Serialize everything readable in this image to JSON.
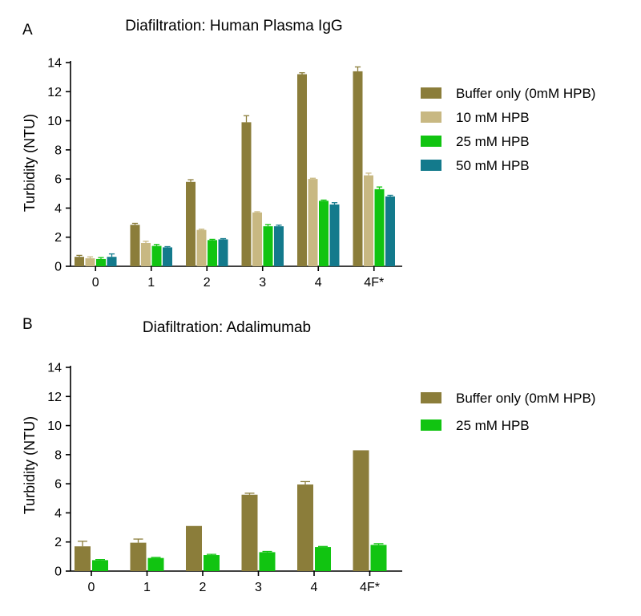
{
  "chart_data": [
    {
      "panel": "A",
      "type": "bar",
      "title": "Diafiltration: Human Plasma IgG",
      "xlabel": "",
      "ylabel": "Turbidity (NTU)",
      "ylim": [
        0,
        14
      ],
      "yticks": [
        0,
        2,
        4,
        6,
        8,
        10,
        12,
        14
      ],
      "grid": false,
      "legend": "right",
      "categories": [
        "0",
        "1",
        "2",
        "3",
        "4",
        "4F*"
      ],
      "series": [
        {
          "name": "Buffer only (0mM HPB)",
          "color": "#8b7d3a",
          "values": [
            0.65,
            2.85,
            5.8,
            9.9,
            13.2,
            13.4
          ],
          "errors": [
            0.1,
            0.1,
            0.15,
            0.45,
            0.1,
            0.3
          ]
        },
        {
          "name": "10 mM HPB",
          "color": "#c8b882",
          "values": [
            0.55,
            1.6,
            2.5,
            3.7,
            6.0,
            6.25
          ],
          "errors": [
            0.1,
            0.12,
            0.05,
            0.05,
            0.05,
            0.15
          ]
        },
        {
          "name": "25 mM HPB",
          "color": "#11c411",
          "values": [
            0.5,
            1.4,
            1.8,
            2.75,
            4.5,
            5.3
          ],
          "errors": [
            0.1,
            0.1,
            0.05,
            0.12,
            0.05,
            0.15
          ]
        },
        {
          "name": "50 mM HPB",
          "color": "#137a8c",
          "values": [
            0.65,
            1.3,
            1.85,
            2.75,
            4.25,
            4.8
          ],
          "errors": [
            0.2,
            0.05,
            0.05,
            0.08,
            0.12,
            0.08
          ]
        }
      ]
    },
    {
      "panel": "B",
      "type": "bar",
      "title": "Diafiltration: Adalimumab",
      "xlabel": "",
      "ylabel": "Turbidity (NTU)",
      "ylim": [
        0,
        14
      ],
      "yticks": [
        0,
        2,
        4,
        6,
        8,
        10,
        12,
        14
      ],
      "grid": false,
      "legend": "right",
      "categories": [
        "0",
        "1",
        "2",
        "3",
        "4",
        "4F*"
      ],
      "series": [
        {
          "name": "Buffer only (0mM HPB)",
          "color": "#8b7d3a",
          "values": [
            1.7,
            1.95,
            3.1,
            5.25,
            5.95,
            8.3
          ],
          "errors": [
            0.35,
            0.25,
            0.0,
            0.1,
            0.2,
            0.0
          ]
        },
        {
          "name": "25 mM HPB",
          "color": "#11c411",
          "values": [
            0.75,
            0.9,
            1.1,
            1.3,
            1.65,
            1.8
          ],
          "errors": [
            0.04,
            0.04,
            0.05,
            0.05,
            0.04,
            0.08
          ]
        }
      ]
    }
  ]
}
